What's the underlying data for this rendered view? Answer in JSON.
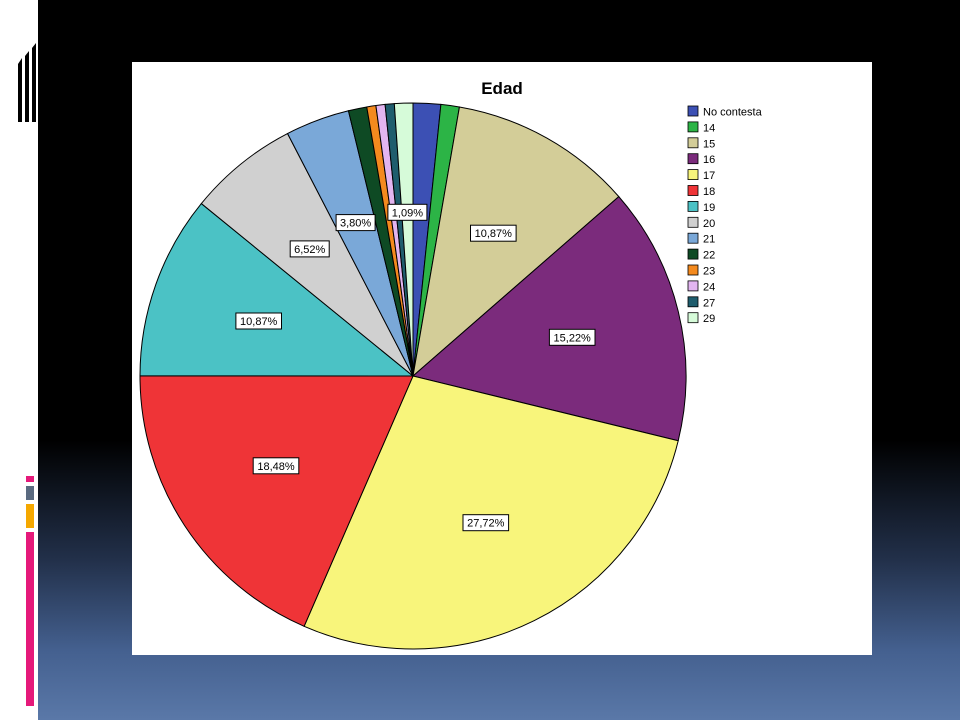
{
  "chart_data": {
    "type": "pie",
    "title": "Edad",
    "legend_position": "right",
    "categories": [
      "No contesta",
      "14",
      "15",
      "16",
      "17",
      "18",
      "19",
      "20",
      "21",
      "22",
      "23",
      "24",
      "27",
      "29"
    ],
    "values": [
      1.63,
      1.09,
      10.87,
      15.22,
      27.72,
      18.48,
      10.87,
      6.52,
      3.8,
      1.09,
      0.54,
      0.54,
      0.54,
      1.09
    ],
    "data_labels": [
      "",
      "",
      "10,87%",
      "15,22%",
      "27,72%",
      "18,48%",
      "10,87%",
      "6,52%",
      "3,80%",
      "",
      "",
      "",
      "",
      "1,09%"
    ],
    "colors": [
      "#3c50b4",
      "#2cb446",
      "#d3cd98",
      "#7b2b7c",
      "#f8f57b",
      "#ef3437",
      "#4bc2c5",
      "#d0d0d0",
      "#7aa8d8",
      "#0e4a24",
      "#f48a1e",
      "#e2b5f0",
      "#1f5d6d",
      "#d6fbd9"
    ]
  },
  "slide": {
    "accent_colors": [
      "#e5197a",
      "#5a6a80",
      "#f5a800",
      "#e5197a"
    ]
  }
}
